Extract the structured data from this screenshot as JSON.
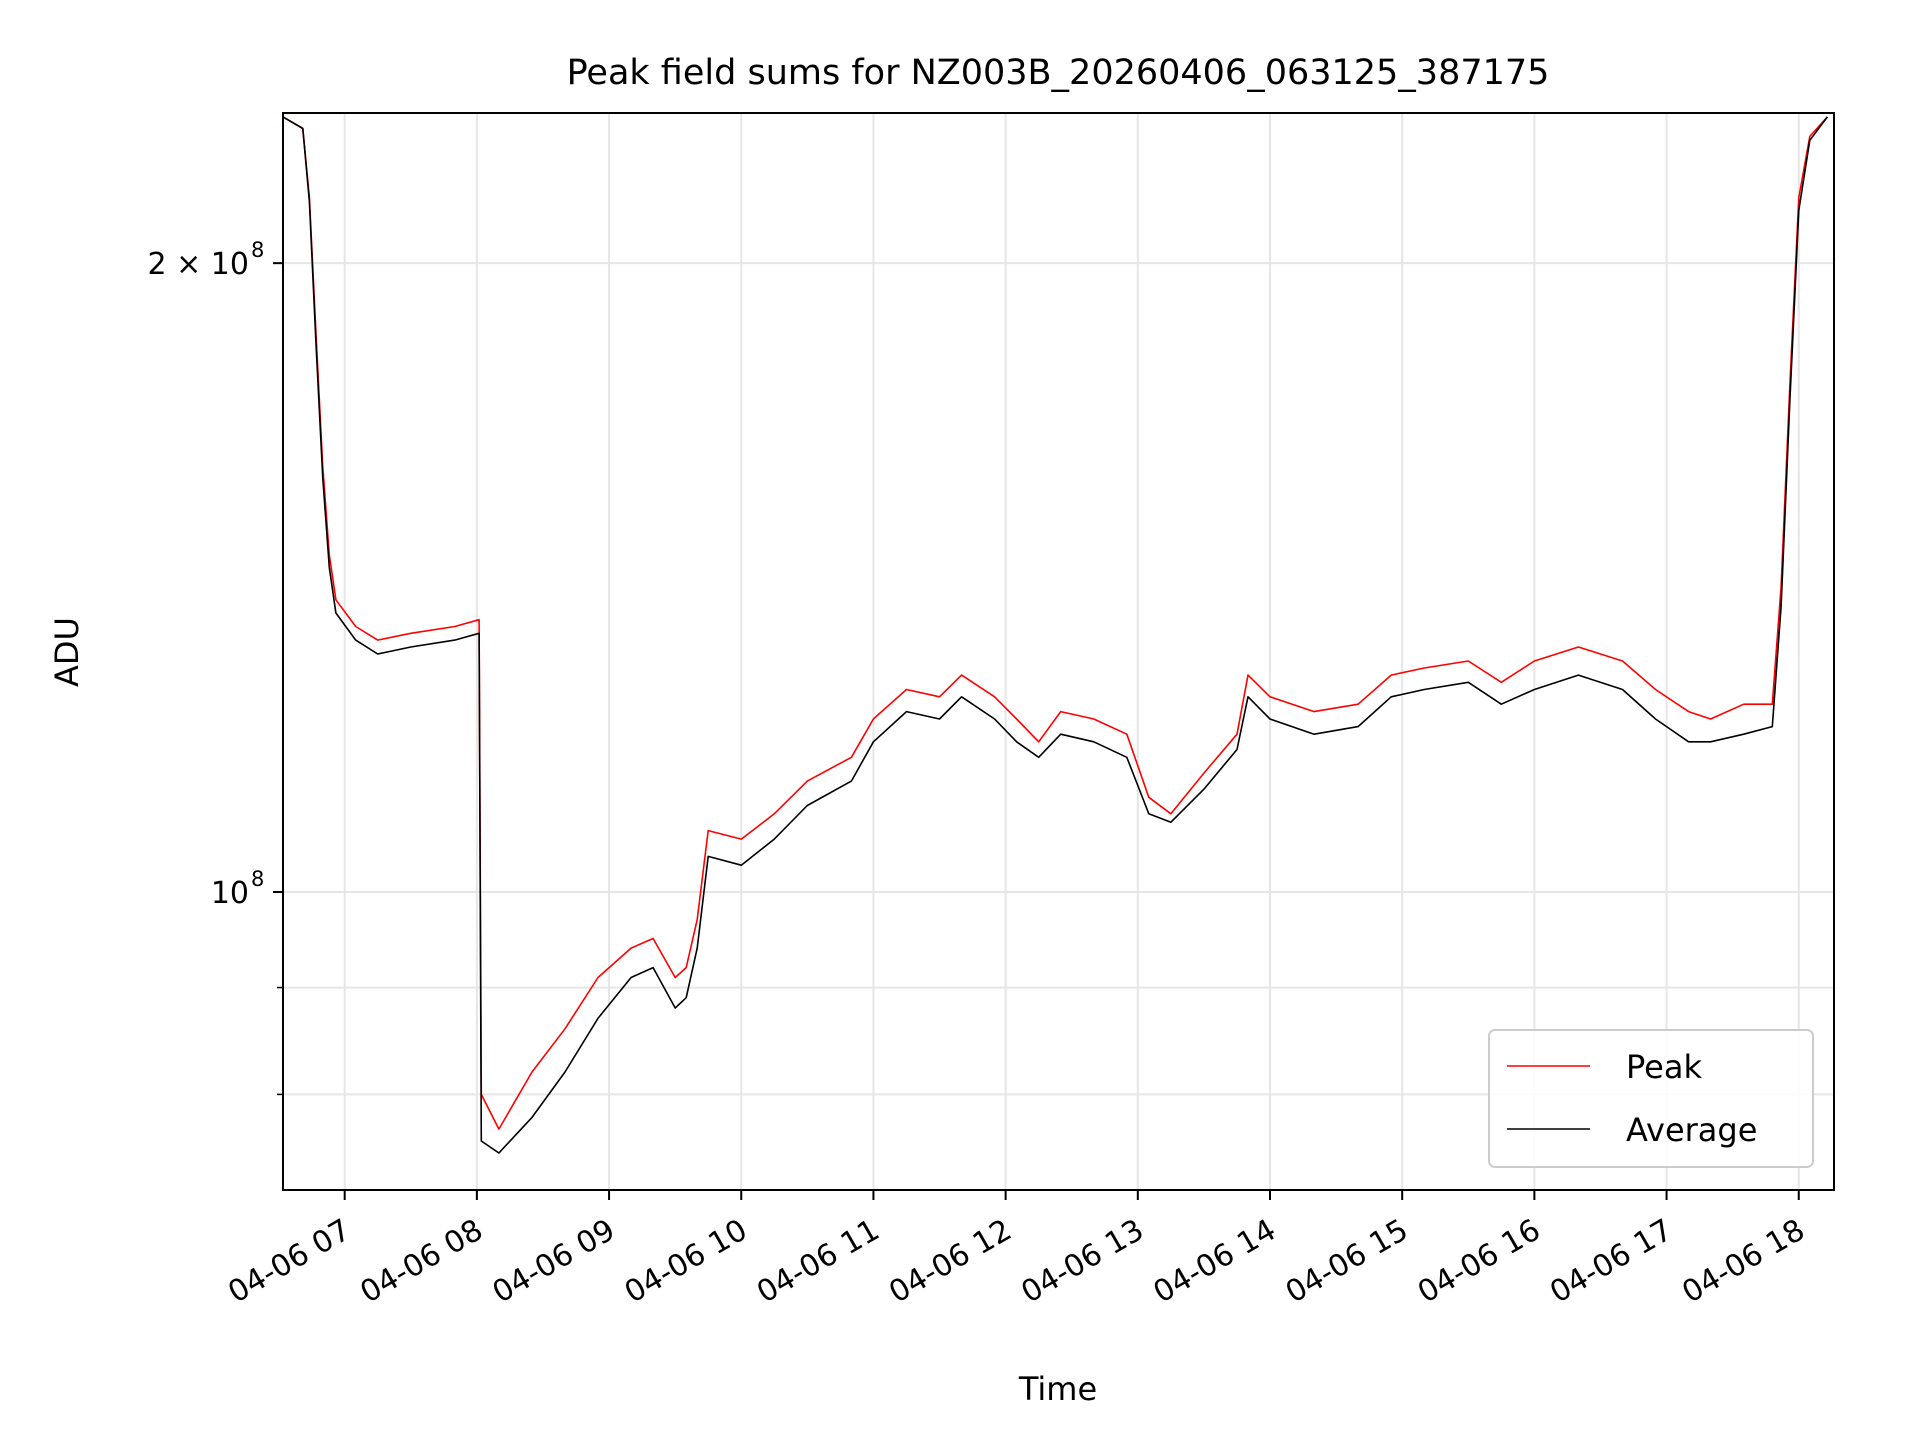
{
  "chart_data": {
    "type": "line",
    "title": "Peak field sums for NZ003B_20260406_063125_387175",
    "xlabel": "Time",
    "ylabel": "ADU",
    "yscale": "log",
    "grid": true,
    "legend_position": "lower-right",
    "ylim": [
      72000000,
      236000000
    ],
    "xlim": [
      "2026-04-06 06:32",
      "2026-04-06 18:16"
    ],
    "x_ticks": [
      {
        "value": "2026-04-06 07:00",
        "label": "04-06 07"
      },
      {
        "value": "2026-04-06 08:00",
        "label": "04-06 08"
      },
      {
        "value": "2026-04-06 09:00",
        "label": "04-06 09"
      },
      {
        "value": "2026-04-06 10:00",
        "label": "04-06 10"
      },
      {
        "value": "2026-04-06 11:00",
        "label": "04-06 11"
      },
      {
        "value": "2026-04-06 12:00",
        "label": "04-06 12"
      },
      {
        "value": "2026-04-06 13:00",
        "label": "04-06 13"
      },
      {
        "value": "2026-04-06 14:00",
        "label": "04-06 14"
      },
      {
        "value": "2026-04-06 15:00",
        "label": "04-06 15"
      },
      {
        "value": "2026-04-06 16:00",
        "label": "04-06 16"
      },
      {
        "value": "2026-04-06 17:00",
        "label": "04-06 17"
      },
      {
        "value": "2026-04-06 18:00",
        "label": "04-06 18"
      }
    ],
    "y_major_ticks": [
      {
        "value": 100000000,
        "base": "10",
        "exp": "8"
      },
      {
        "value": 200000000,
        "base": "2 × 10",
        "exp": "8"
      }
    ],
    "y_minor_ticks": [
      80000000,
      90000000
    ],
    "series": [
      {
        "name": "Peak",
        "color": "#ff0000",
        "points": [
          [
            "2026-04-06 06:32",
            235000000
          ],
          [
            "2026-04-06 06:41",
            232000000
          ],
          [
            "2026-04-06 06:44",
            215000000
          ],
          [
            "2026-04-06 06:47",
            185000000
          ],
          [
            "2026-04-06 06:50",
            160000000
          ],
          [
            "2026-04-06 06:53",
            145000000
          ],
          [
            "2026-04-06 06:56",
            138000000
          ],
          [
            "2026-04-06 07:05",
            134000000
          ],
          [
            "2026-04-06 07:15",
            132000000
          ],
          [
            "2026-04-06 07:30",
            133000000
          ],
          [
            "2026-04-06 07:50",
            134000000
          ],
          [
            "2026-04-06 08:01",
            135000000
          ],
          [
            "2026-04-06 08:02",
            80000000
          ],
          [
            "2026-04-06 08:10",
            77000000
          ],
          [
            "2026-04-06 08:25",
            82000000
          ],
          [
            "2026-04-06 08:40",
            86000000
          ],
          [
            "2026-04-06 08:55",
            91000000
          ],
          [
            "2026-04-06 09:10",
            94000000
          ],
          [
            "2026-04-06 09:20",
            95000000
          ],
          [
            "2026-04-06 09:30",
            91000000
          ],
          [
            "2026-04-06 09:35",
            92000000
          ],
          [
            "2026-04-06 09:40",
            97000000
          ],
          [
            "2026-04-06 09:45",
            107000000
          ],
          [
            "2026-04-06 10:00",
            106000000
          ],
          [
            "2026-04-06 10:15",
            109000000
          ],
          [
            "2026-04-06 10:30",
            113000000
          ],
          [
            "2026-04-06 10:50",
            116000000
          ],
          [
            "2026-04-06 11:00",
            121000000
          ],
          [
            "2026-04-06 11:15",
            125000000
          ],
          [
            "2026-04-06 11:30",
            124000000
          ],
          [
            "2026-04-06 11:40",
            127000000
          ],
          [
            "2026-04-06 11:55",
            124000000
          ],
          [
            "2026-04-06 12:05",
            121000000
          ],
          [
            "2026-04-06 12:15",
            118000000
          ],
          [
            "2026-04-06 12:25",
            122000000
          ],
          [
            "2026-04-06 12:40",
            121000000
          ],
          [
            "2026-04-06 12:55",
            119000000
          ],
          [
            "2026-04-06 13:05",
            111000000
          ],
          [
            "2026-04-06 13:15",
            109000000
          ],
          [
            "2026-04-06 13:30",
            114000000
          ],
          [
            "2026-04-06 13:45",
            119000000
          ],
          [
            "2026-04-06 13:50",
            127000000
          ],
          [
            "2026-04-06 14:00",
            124000000
          ],
          [
            "2026-04-06 14:20",
            122000000
          ],
          [
            "2026-04-06 14:40",
            123000000
          ],
          [
            "2026-04-06 14:55",
            127000000
          ],
          [
            "2026-04-06 15:10",
            128000000
          ],
          [
            "2026-04-06 15:30",
            129000000
          ],
          [
            "2026-04-06 15:45",
            126000000
          ],
          [
            "2026-04-06 16:00",
            129000000
          ],
          [
            "2026-04-06 16:20",
            131000000
          ],
          [
            "2026-04-06 16:40",
            129000000
          ],
          [
            "2026-04-06 16:55",
            125000000
          ],
          [
            "2026-04-06 17:10",
            122000000
          ],
          [
            "2026-04-06 17:20",
            121000000
          ],
          [
            "2026-04-06 17:35",
            123000000
          ],
          [
            "2026-04-06 17:48",
            123000000
          ],
          [
            "2026-04-06 17:52",
            140000000
          ],
          [
            "2026-04-06 17:56",
            175000000
          ],
          [
            "2026-04-06 18:00",
            215000000
          ],
          [
            "2026-04-06 18:05",
            230000000
          ],
          [
            "2026-04-06 18:13",
            235000000
          ]
        ]
      },
      {
        "name": "Average",
        "color": "#000000",
        "points": [
          [
            "2026-04-06 06:32",
            235000000
          ],
          [
            "2026-04-06 06:41",
            232000000
          ],
          [
            "2026-04-06 06:44",
            214000000
          ],
          [
            "2026-04-06 06:47",
            183000000
          ],
          [
            "2026-04-06 06:50",
            158000000
          ],
          [
            "2026-04-06 06:53",
            143000000
          ],
          [
            "2026-04-06 06:56",
            136000000
          ],
          [
            "2026-04-06 07:05",
            132000000
          ],
          [
            "2026-04-06 07:15",
            130000000
          ],
          [
            "2026-04-06 07:30",
            131000000
          ],
          [
            "2026-04-06 07:50",
            132000000
          ],
          [
            "2026-04-06 08:01",
            133000000
          ],
          [
            "2026-04-06 08:02",
            76000000
          ],
          [
            "2026-04-06 08:10",
            75000000
          ],
          [
            "2026-04-06 08:25",
            78000000
          ],
          [
            "2026-04-06 08:40",
            82000000
          ],
          [
            "2026-04-06 08:55",
            87000000
          ],
          [
            "2026-04-06 09:10",
            91000000
          ],
          [
            "2026-04-06 09:20",
            92000000
          ],
          [
            "2026-04-06 09:30",
            88000000
          ],
          [
            "2026-04-06 09:35",
            89000000
          ],
          [
            "2026-04-06 09:40",
            94000000
          ],
          [
            "2026-04-06 09:45",
            104000000
          ],
          [
            "2026-04-06 10:00",
            103000000
          ],
          [
            "2026-04-06 10:15",
            106000000
          ],
          [
            "2026-04-06 10:30",
            110000000
          ],
          [
            "2026-04-06 10:50",
            113000000
          ],
          [
            "2026-04-06 11:00",
            118000000
          ],
          [
            "2026-04-06 11:15",
            122000000
          ],
          [
            "2026-04-06 11:30",
            121000000
          ],
          [
            "2026-04-06 11:40",
            124000000
          ],
          [
            "2026-04-06 11:55",
            121000000
          ],
          [
            "2026-04-06 12:05",
            118000000
          ],
          [
            "2026-04-06 12:15",
            116000000
          ],
          [
            "2026-04-06 12:25",
            119000000
          ],
          [
            "2026-04-06 12:40",
            118000000
          ],
          [
            "2026-04-06 12:55",
            116000000
          ],
          [
            "2026-04-06 13:05",
            109000000
          ],
          [
            "2026-04-06 13:15",
            108000000
          ],
          [
            "2026-04-06 13:30",
            112000000
          ],
          [
            "2026-04-06 13:45",
            117000000
          ],
          [
            "2026-04-06 13:50",
            124000000
          ],
          [
            "2026-04-06 14:00",
            121000000
          ],
          [
            "2026-04-06 14:20",
            119000000
          ],
          [
            "2026-04-06 14:40",
            120000000
          ],
          [
            "2026-04-06 14:55",
            124000000
          ],
          [
            "2026-04-06 15:10",
            125000000
          ],
          [
            "2026-04-06 15:30",
            126000000
          ],
          [
            "2026-04-06 15:45",
            123000000
          ],
          [
            "2026-04-06 16:00",
            125000000
          ],
          [
            "2026-04-06 16:20",
            127000000
          ],
          [
            "2026-04-06 16:40",
            125000000
          ],
          [
            "2026-04-06 16:55",
            121000000
          ],
          [
            "2026-04-06 17:10",
            118000000
          ],
          [
            "2026-04-06 17:20",
            118000000
          ],
          [
            "2026-04-06 17:35",
            119000000
          ],
          [
            "2026-04-06 17:48",
            120000000
          ],
          [
            "2026-04-06 17:52",
            137000000
          ],
          [
            "2026-04-06 17:56",
            172000000
          ],
          [
            "2026-04-06 18:00",
            212000000
          ],
          [
            "2026-04-06 18:05",
            229000000
          ],
          [
            "2026-04-06 18:13",
            235000000
          ]
        ]
      }
    ]
  }
}
